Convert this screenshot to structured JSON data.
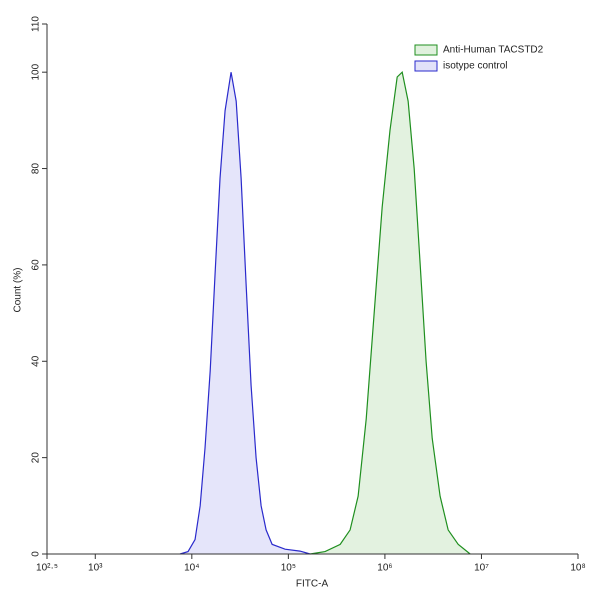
{
  "chart_data": {
    "type": "histogram-overlay",
    "x_label": "FITC-A",
    "y_label": "Count (%)",
    "xscale": "log",
    "xlim": [
      316.2278,
      100000000
    ],
    "xticks": [
      {
        "value": 316.2278,
        "label": "10²·⁵"
      },
      {
        "value": 1000,
        "label": "10³"
      },
      {
        "value": 10000,
        "label": "10⁴"
      },
      {
        "value": 100000,
        "label": "10⁵"
      },
      {
        "value": 1000000,
        "label": "10⁶"
      },
      {
        "value": 10000000,
        "label": "10⁷"
      },
      {
        "value": 100000000,
        "label": "10⁸"
      }
    ],
    "ylim": [
      0,
      110
    ],
    "yticks": [
      0,
      20,
      40,
      60,
      80,
      100,
      110
    ],
    "legend": "upper right",
    "series": [
      {
        "name": "Anti-Human TACSTD2",
        "color": "#1f8f1f",
        "fill": "#e0f1dd",
        "x": [
          168000,
          240000,
          344000,
          436000,
          528000,
          640000,
          774000,
          937000,
          1130000,
          1340000,
          1510000,
          1740000,
          2010000,
          2320000,
          2670000,
          3090000,
          3730000,
          4520000,
          5740000,
          7640000
        ],
        "values": [
          0,
          0.5,
          2,
          5,
          12,
          28,
          50,
          72,
          88,
          99,
          100,
          94,
          80,
          60,
          40,
          24,
          12,
          5,
          2,
          0
        ]
      },
      {
        "name": "isotype control",
        "color": "#2a2acc",
        "fill": "#e2e2f9",
        "x": [
          7550,
          9140,
          10800,
          12200,
          13700,
          15500,
          17400,
          19600,
          22100,
          25500,
          28800,
          32400,
          36500,
          41100,
          46300,
          52200,
          58800,
          67900,
          92500,
          132000,
          168000
        ],
        "values": [
          0,
          0.5,
          3,
          10,
          22,
          38,
          58,
          78,
          92,
          100,
          94,
          78,
          56,
          35,
          20,
          10,
          5,
          2,
          1,
          0.6,
          0
        ]
      }
    ]
  }
}
